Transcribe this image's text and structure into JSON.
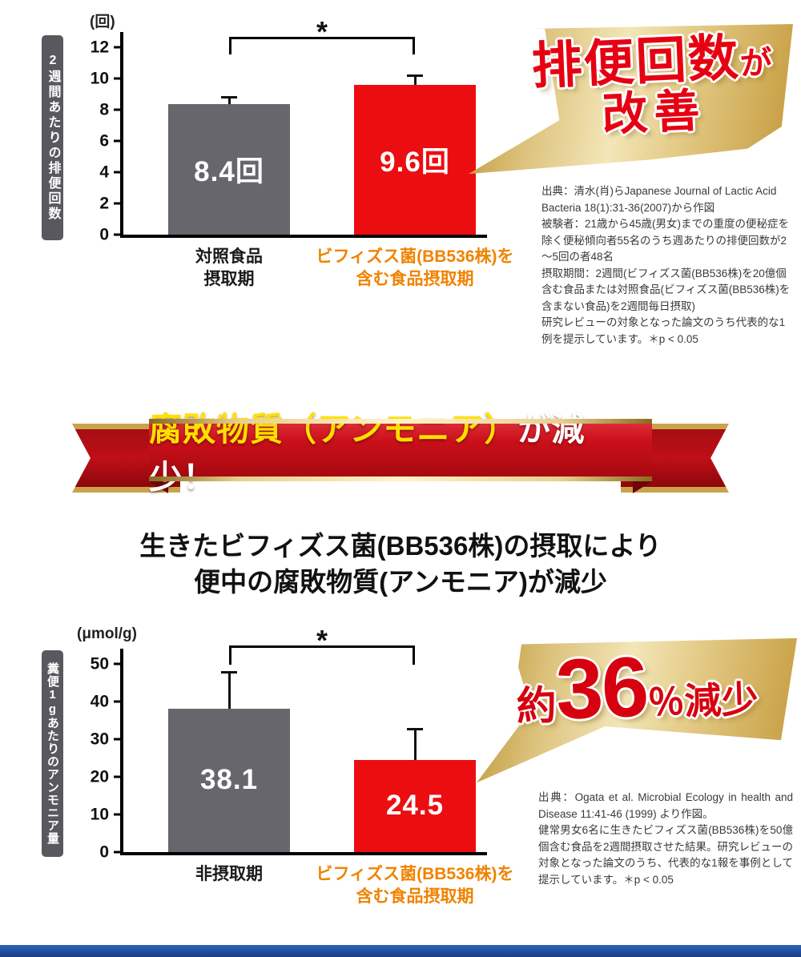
{
  "chart_data": [
    {
      "type": "bar",
      "title": "排便回数が改善",
      "unit_label": "(回)",
      "axis_title": "2週間あたりの排便回数",
      "categories": [
        "対照食品\n摂取期",
        "ビフィズス菌(BB536株)を\n含む食品摂取期"
      ],
      "category_colors": [
        "#1a1a1a",
        "#f08300"
      ],
      "values": [
        8.4,
        9.6
      ],
      "value_labels": [
        "8.4回",
        "9.6回"
      ],
      "errors_plus": [
        0.5,
        0.7
      ],
      "bar_colors": [
        "#67666c",
        "#ec0d10"
      ],
      "ylim": [
        0,
        13
      ],
      "yticks": [
        0,
        2,
        4,
        6,
        8,
        10,
        12
      ],
      "significance": "*",
      "grid": false,
      "legend": "none"
    },
    {
      "type": "bar",
      "title": "約36％減少",
      "unit_label": "(μmol/g)",
      "axis_title": "糞便1gあたりのアンモニア量",
      "categories": [
        "非摂取期",
        "ビフィズス菌(BB536株)を\n含む食品摂取期"
      ],
      "category_colors": [
        "#1a1a1a",
        "#f08300"
      ],
      "values": [
        38.1,
        24.5
      ],
      "value_labels": [
        "38.1",
        "24.5"
      ],
      "errors_plus": [
        10,
        8.5
      ],
      "bar_colors": [
        "#67666c",
        "#ec0d10"
      ],
      "ylim": [
        0,
        54
      ],
      "yticks": [
        0,
        10,
        20,
        30,
        40,
        50
      ],
      "significance": "*",
      "grid": false,
      "legend": "none"
    }
  ],
  "badge1": {
    "main": "排便回数",
    "particle": "が",
    "sub": "改善"
  },
  "badge2": {
    "prefix": "約",
    "number": "36",
    "suffix": "％減少"
  },
  "ribbon": {
    "highlight": "腐敗物質（アンモニア）",
    "rest": "が減少！"
  },
  "subheading": {
    "line1": "生きたビフィズス菌(BB536株)の摂取により",
    "line2": "便中の腐敗物質(アンモニア)が減少"
  },
  "source1": {
    "text": "出典：清水(肖)らJapanese Journal of Lactic Acid Bacteria 18(1):31-36(2007)から作図\n被験者：21歳から45歳(男女)までの重度の便秘症を除く便秘傾向者55名のうち週あたりの排便回数が2～5回の者48名\n摂取期間：2週間(ビフィズス菌(BB536株)を20億個含む食品または対照食品(ビフィズス菌(BB536株)を含まない食品)を2週間毎日摂取)\n研究レビューの対象となった論文のうち代表的な1例を提示しています。＊p < 0.05"
  },
  "source2": {
    "text": "出典：Ogata et al. Microbial Ecology in health and Disease 11:41-46 (1999) より作図。\n健常男女6名に生きたビフィズス菌(BB536株)を50億個含む食品を2週間摂取させた結果。研究レビューの対象となった論文のうち、代表的な1報を事例として提示しています。＊p < 0.05"
  },
  "colors": {
    "accent_red": "#e60012",
    "bar_gray": "#67666c",
    "bar_red": "#ec0d10",
    "orange_label": "#f08300",
    "gold": "#d9bc6d",
    "ribbon_red": "#c00f17",
    "footer_blue": "#1c4da6"
  }
}
